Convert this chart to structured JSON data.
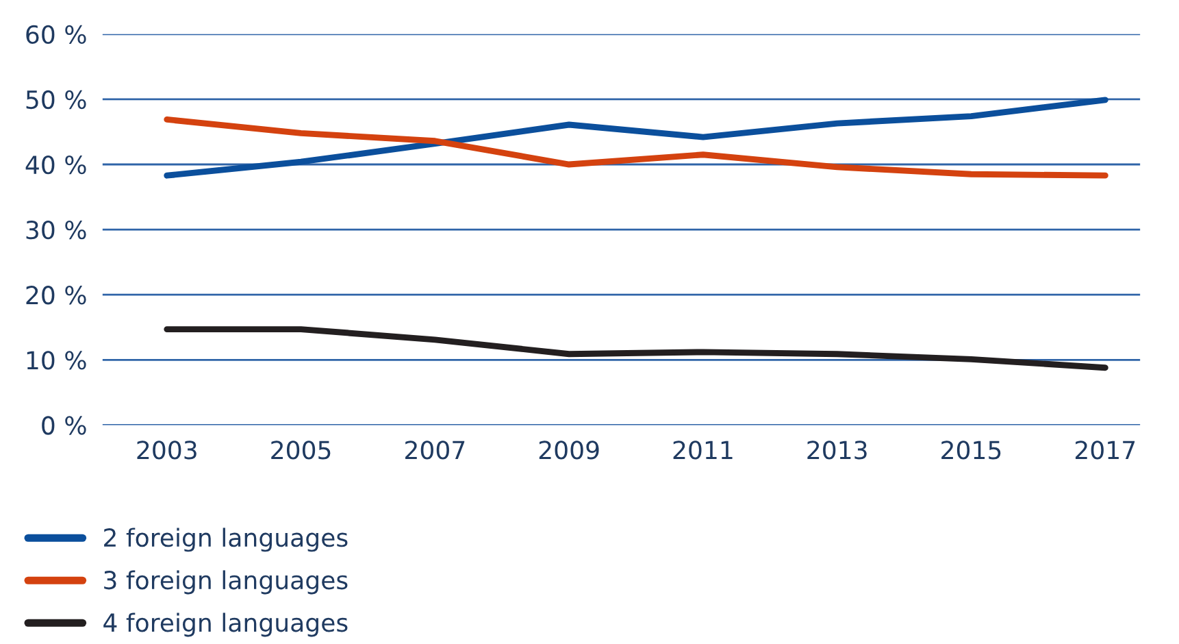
{
  "chart_data": {
    "type": "line",
    "categories": [
      "2003",
      "2005",
      "2007",
      "2009",
      "2011",
      "2013",
      "2015",
      "2017"
    ],
    "series": [
      {
        "name": "2 foreign languages",
        "color": "#0b4f9c",
        "values": [
          38.3,
          40.4,
          43.2,
          46.1,
          44.2,
          46.3,
          47.4,
          49.9
        ]
      },
      {
        "name": "3 foreign languages",
        "color": "#d4420f",
        "values": [
          46.9,
          44.8,
          43.6,
          40.0,
          41.5,
          39.6,
          38.5,
          38.3
        ]
      },
      {
        "name": "4 foreign languages",
        "color": "#231f20",
        "values": [
          14.7,
          14.7,
          13.1,
          10.9,
          11.2,
          10.9,
          10.1,
          8.8
        ]
      }
    ],
    "ylim": [
      0,
      60
    ],
    "yticks": [
      {
        "value": 0,
        "label": "0 %"
      },
      {
        "value": 10,
        "label": "10 %"
      },
      {
        "value": 20,
        "label": "20 %"
      },
      {
        "value": 30,
        "label": "30 %"
      },
      {
        "value": 40,
        "label": "40 %"
      },
      {
        "value": 50,
        "label": "50 %"
      },
      {
        "value": 60,
        "label": "60 %"
      }
    ],
    "grid": "y",
    "legend": "bottom",
    "marker": "none",
    "line_style": "solid"
  }
}
